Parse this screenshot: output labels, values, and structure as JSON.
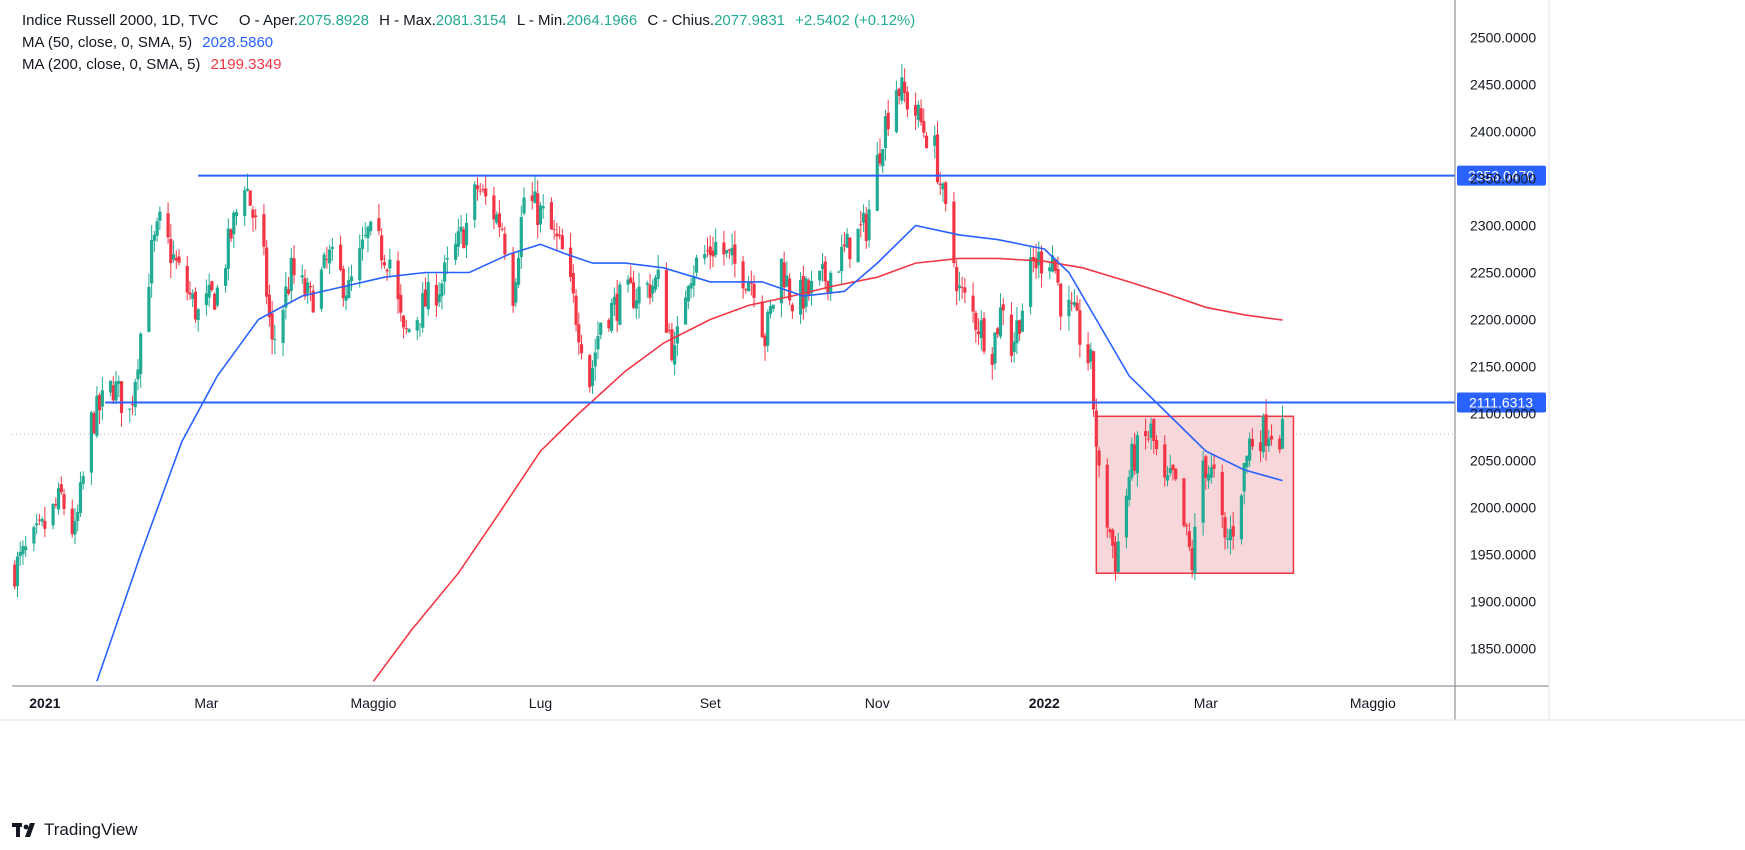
{
  "legend": {
    "symbol": "Indice Russell 2000, 1D, TVC",
    "o_label": "O - Aper.",
    "o_value": "2075.8928",
    "h_label": "H - Max.",
    "h_value": "2081.3154",
    "l_label": "L - Min.",
    "l_value": "2064.1966",
    "c_label": "C - Chius.",
    "c_value": "2077.9831",
    "change": "+2.5402 (+0.12%)",
    "ma50_label": "MA (50, close, 0, SMA, 5)",
    "ma50_value": "2028.5860",
    "ma200_label": "MA (200, close, 0, SMA, 5)",
    "ma200_value": "2199.3349"
  },
  "brand": {
    "name": "TradingView"
  },
  "colors": {
    "up": "#22ab94",
    "down": "#f23645",
    "ma50": "#2962ff",
    "ma200": "#f23645",
    "level": "#2962ff",
    "box": "#f23645",
    "box_fill": "#f8d7da"
  },
  "chart_data": {
    "type": "candlestick",
    "title": "Indice Russell 2000, 1D, TVC",
    "y_range": [
      1810,
      2540
    ],
    "y_ticks": [
      "2500.0000",
      "2450.0000",
      "2400.0000",
      "2350.0000",
      "2300.0000",
      "2250.0000",
      "2200.0000",
      "2150.0000",
      "2100.0000",
      "2050.0000",
      "2000.0000",
      "1950.0000",
      "1900.0000",
      "1850.0000"
    ],
    "x_range": [
      "2020-12-20",
      "2022-05-31"
    ],
    "x_ticks": [
      {
        "date": "2021-01-01",
        "label": "2021",
        "bold": true
      },
      {
        "date": "2021-03-01",
        "label": "Mar"
      },
      {
        "date": "2021-05-01",
        "label": "Maggio"
      },
      {
        "date": "2021-07-01",
        "label": "Lug"
      },
      {
        "date": "2021-09-01",
        "label": "Set"
      },
      {
        "date": "2021-11-01",
        "label": "Nov"
      },
      {
        "date": "2022-01-01",
        "label": "2022",
        "bold": true
      },
      {
        "date": "2022-03-01",
        "label": "Mar"
      },
      {
        "date": "2022-05-01",
        "label": "Maggio"
      }
    ],
    "levels": [
      {
        "value": 2353.047,
        "label": "2353.0470",
        "start": "2021-02-26"
      },
      {
        "value": 2111.6313,
        "label": "2111.6313",
        "start": "2021-01-23"
      }
    ],
    "last_price": 2077.9831,
    "range_box": {
      "start": "2022-01-20",
      "end": "2022-04-02",
      "low": 1930,
      "high": 2097
    },
    "anchors": [
      [
        "2020-12-21",
        1935
      ],
      [
        "2020-12-31",
        1975
      ],
      [
        "2021-01-07",
        2010
      ],
      [
        "2021-01-12",
        1970
      ],
      [
        "2021-01-18",
        2090
      ],
      [
        "2021-01-26",
        2130
      ],
      [
        "2021-02-01",
        2100
      ],
      [
        "2021-02-09",
        2270
      ],
      [
        "2021-02-12",
        2300
      ],
      [
        "2021-02-19",
        2250
      ],
      [
        "2021-02-26",
        2205
      ],
      [
        "2021-03-05",
        2230
      ],
      [
        "2021-03-15",
        2350
      ],
      [
        "2021-03-22",
        2260
      ],
      [
        "2021-03-25",
        2170
      ],
      [
        "2021-04-01",
        2250
      ],
      [
        "2021-04-08",
        2220
      ],
      [
        "2021-04-15",
        2265
      ],
      [
        "2021-04-22",
        2230
      ],
      [
        "2021-04-29",
        2290
      ],
      [
        "2021-05-07",
        2265
      ],
      [
        "2021-05-12",
        2180
      ],
      [
        "2021-05-18",
        2210
      ],
      [
        "2021-05-26",
        2240
      ],
      [
        "2021-06-04",
        2300
      ],
      [
        "2021-06-08",
        2340
      ],
      [
        "2021-06-17",
        2300
      ],
      [
        "2021-06-21",
        2230
      ],
      [
        "2021-06-25",
        2330
      ],
      [
        "2021-07-02",
        2310
      ],
      [
        "2021-07-09",
        2270
      ],
      [
        "2021-07-16",
        2180
      ],
      [
        "2021-07-19",
        2135
      ],
      [
        "2021-07-23",
        2200
      ],
      [
        "2021-07-30",
        2220
      ],
      [
        "2021-08-06",
        2230
      ],
      [
        "2021-08-13",
        2240
      ],
      [
        "2021-08-19",
        2160
      ],
      [
        "2021-08-24",
        2250
      ],
      [
        "2021-09-03",
        2280
      ],
      [
        "2021-09-09",
        2260
      ],
      [
        "2021-09-17",
        2240
      ],
      [
        "2021-09-21",
        2180
      ],
      [
        "2021-09-27",
        2260
      ],
      [
        "2021-10-01",
        2220
      ],
      [
        "2021-10-08",
        2230
      ],
      [
        "2021-10-15",
        2250
      ],
      [
        "2021-10-22",
        2280
      ],
      [
        "2021-10-28",
        2300
      ],
      [
        "2021-11-03",
        2400
      ],
      [
        "2021-11-08",
        2450
      ],
      [
        "2021-11-15",
        2420
      ],
      [
        "2021-11-22",
        2380
      ],
      [
        "2021-11-26",
        2310
      ],
      [
        "2021-12-01",
        2230
      ],
      [
        "2021-12-07",
        2200
      ],
      [
        "2021-12-13",
        2170
      ],
      [
        "2021-12-17",
        2220
      ],
      [
        "2021-12-20",
        2170
      ],
      [
        "2021-12-28",
        2260
      ],
      [
        "2022-01-04",
        2270
      ],
      [
        "2022-01-07",
        2220
      ],
      [
        "2022-01-12",
        2200
      ],
      [
        "2022-01-18",
        2150
      ],
      [
        "2022-01-21",
        2030
      ],
      [
        "2022-01-27",
        1945
      ],
      [
        "2022-02-02",
        2050
      ],
      [
        "2022-02-09",
        2080
      ],
      [
        "2022-02-14",
        2020
      ],
      [
        "2022-02-17",
        2030
      ],
      [
        "2022-02-24",
        1940
      ],
      [
        "2022-02-28",
        2050
      ],
      [
        "2022-03-04",
        2030
      ],
      [
        "2022-03-08",
        1960
      ],
      [
        "2022-03-11",
        1980
      ],
      [
        "2022-03-17",
        2070
      ],
      [
        "2022-03-24",
        2085
      ],
      [
        "2022-03-29",
        2078
      ]
    ],
    "ma50": [
      [
        "2021-01-20",
        1815
      ],
      [
        "2021-02-05",
        1950
      ],
      [
        "2021-02-20",
        2070
      ],
      [
        "2021-03-05",
        2140
      ],
      [
        "2021-03-20",
        2200
      ],
      [
        "2021-04-05",
        2225
      ],
      [
        "2021-04-20",
        2235
      ],
      [
        "2021-05-05",
        2245
      ],
      [
        "2021-05-20",
        2250
      ],
      [
        "2021-06-05",
        2250
      ],
      [
        "2021-06-20",
        2270
      ],
      [
        "2021-07-01",
        2280
      ],
      [
        "2021-07-10",
        2270
      ],
      [
        "2021-07-20",
        2260
      ],
      [
        "2021-08-01",
        2260
      ],
      [
        "2021-08-15",
        2255
      ],
      [
        "2021-09-01",
        2240
      ],
      [
        "2021-09-20",
        2240
      ],
      [
        "2021-10-05",
        2225
      ],
      [
        "2021-10-20",
        2230
      ],
      [
        "2021-11-01",
        2260
      ],
      [
        "2021-11-15",
        2300
      ],
      [
        "2021-12-01",
        2290
      ],
      [
        "2021-12-15",
        2285
      ],
      [
        "2022-01-01",
        2275
      ],
      [
        "2022-01-10",
        2250
      ],
      [
        "2022-01-20",
        2200
      ],
      [
        "2022-02-01",
        2140
      ],
      [
        "2022-02-15",
        2100
      ],
      [
        "2022-03-01",
        2060
      ],
      [
        "2022-03-15",
        2040
      ],
      [
        "2022-03-29",
        2028.586
      ]
    ],
    "ma200": [
      [
        "2021-05-01",
        1815
      ],
      [
        "2021-05-15",
        1870
      ],
      [
        "2021-06-01",
        1930
      ],
      [
        "2021-06-15",
        1990
      ],
      [
        "2021-07-01",
        2060
      ],
      [
        "2021-07-15",
        2100
      ],
      [
        "2021-08-01",
        2145
      ],
      [
        "2021-08-15",
        2175
      ],
      [
        "2021-09-01",
        2200
      ],
      [
        "2021-09-15",
        2215
      ],
      [
        "2021-10-01",
        2225
      ],
      [
        "2021-10-15",
        2235
      ],
      [
        "2021-11-01",
        2245
      ],
      [
        "2021-11-15",
        2260
      ],
      [
        "2021-12-01",
        2265
      ],
      [
        "2021-12-15",
        2265
      ],
      [
        "2022-01-01",
        2262
      ],
      [
        "2022-01-15",
        2255
      ],
      [
        "2022-02-01",
        2240
      ],
      [
        "2022-02-15",
        2227
      ],
      [
        "2022-03-01",
        2213
      ],
      [
        "2022-03-15",
        2205
      ],
      [
        "2022-03-29",
        2199.3349
      ]
    ]
  }
}
